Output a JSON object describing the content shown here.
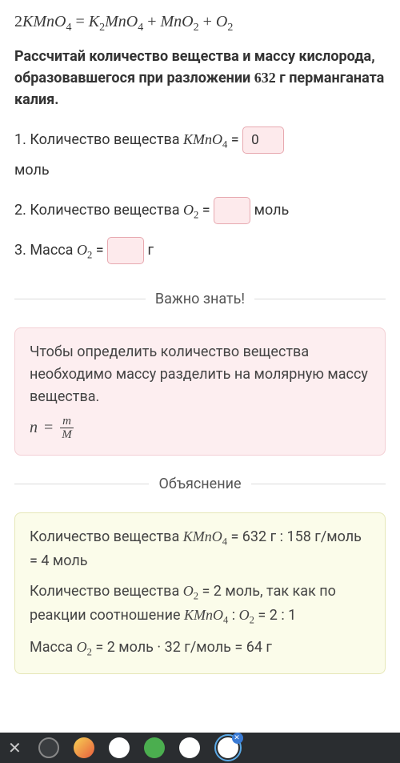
{
  "equation": {
    "lhs_coeff": "2",
    "lhs": "KMnO",
    "lhs_sub": "4",
    "eq": " = ",
    "r1": "K",
    "r1_sub": "2",
    "r1b": "MnO",
    "r1b_sub": "4",
    "plus1": " + ",
    "r2": "MnO",
    "r2_sub": "2",
    "plus2": " + ",
    "r3": "O",
    "r3_sub": "2"
  },
  "prompt": {
    "text1": "Рассчитай количество вещества и массу кислорода, образовавшегося при разложении ",
    "mass": "632",
    "text2": " г перманганата калия."
  },
  "questions": {
    "q1_pre": "1. Количество вещества ",
    "q1_chem": "KMnO",
    "q1_sub": "4",
    "q1_eq": " = ",
    "q1_value": "0",
    "q1_unit": "моль",
    "q2_pre": "2. Количество вещества ",
    "q2_chem": "O",
    "q2_sub": "2",
    "q2_eq": " = ",
    "q2_value": "",
    "q2_unit": " моль",
    "q3_pre": "3. Масса ",
    "q3_chem": "O",
    "q3_sub": "2",
    "q3_eq": " = ",
    "q3_value": "",
    "q3_unit": " г"
  },
  "dividers": {
    "important": "Важно знать!",
    "explanation": "Объяснение"
  },
  "hint": {
    "text": "Чтобы определить количество вещества необходимо массу разделить на молярную массу вещества.",
    "formula_lhs": "n",
    "formula_eq": "=",
    "formula_num": "m",
    "formula_den": "M"
  },
  "explanation": {
    "l1a": "Количество вещества ",
    "l1_chem": "KMnO",
    "l1_sub": "4",
    "l1b": " = 632 г : 158 г/моль = 4 моль",
    "l2a": "Количество вещества ",
    "l2_chem": "O",
    "l2_sub": "2",
    "l2b": " = 2 моль, так как по реакции соотношение ",
    "l2_chem2": "KMnO",
    "l2_sub2": "4",
    "l2c": " : ",
    "l2_chem3": "O",
    "l2_sub3": "2",
    "l2d": " = 2 : 1",
    "l3a": "Масса ",
    "l3_chem": "O",
    "l3_sub": "2",
    "l3b": " = 2 моль · 32 г/моль = 64 г"
  },
  "colors": {
    "pink_bg": "#fdeef0",
    "pink_border": "#f3cfd4",
    "yellow_bg": "#fbfcea",
    "yellow_border": "#e6e7b8",
    "input_bg": "#fdeaec",
    "input_border": "#e7a9b0"
  }
}
